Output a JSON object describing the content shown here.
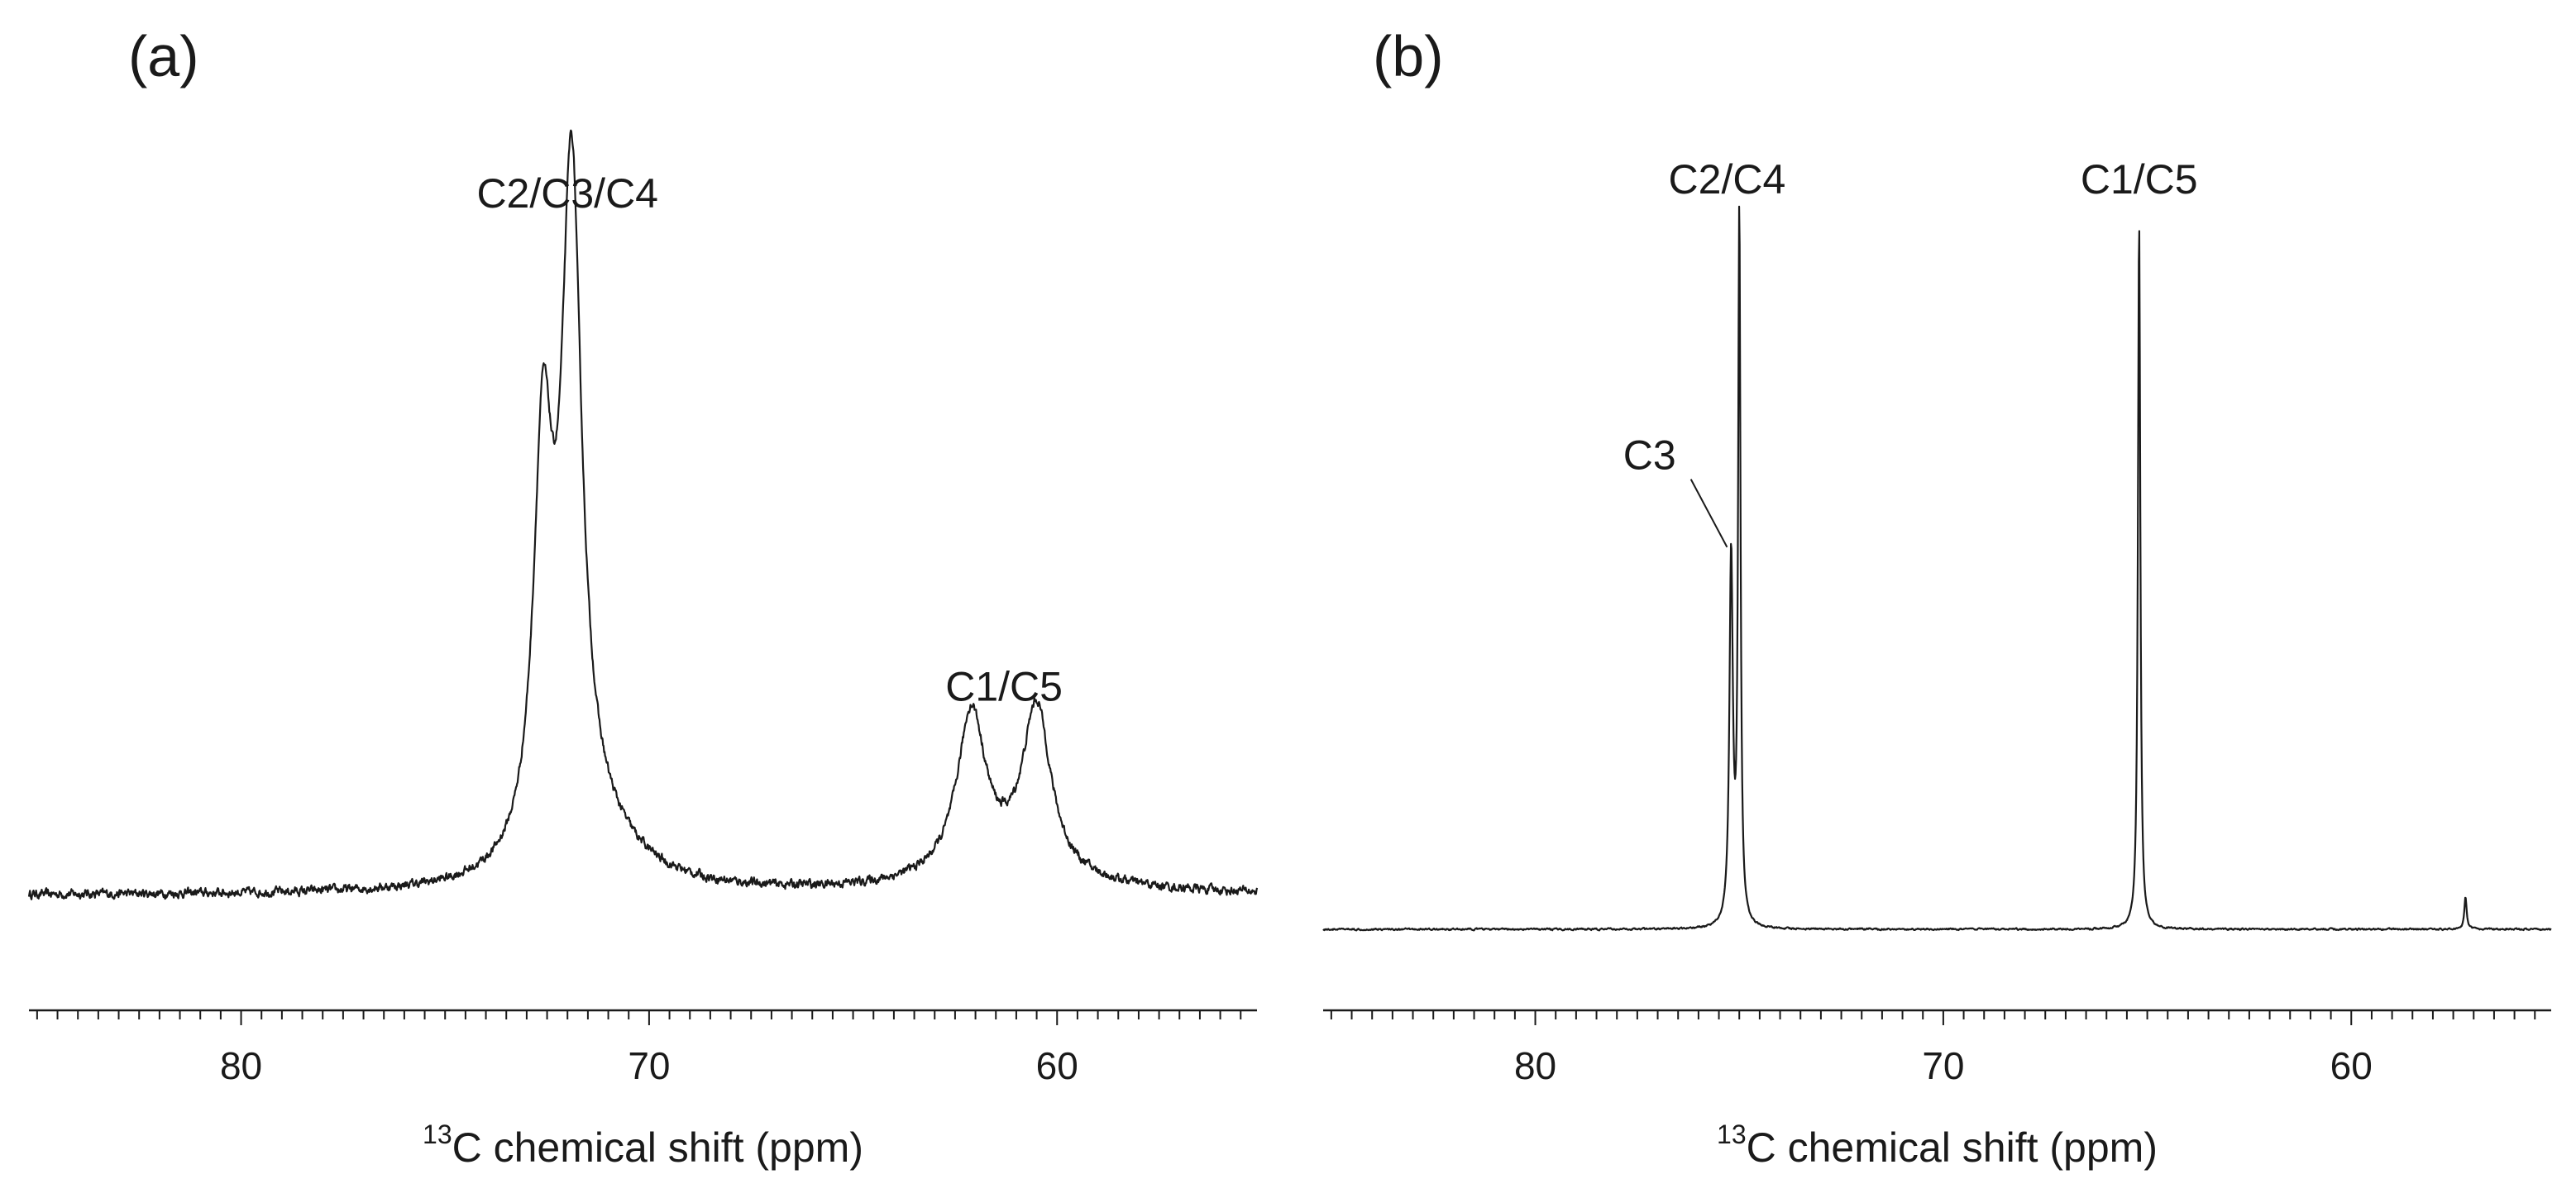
{
  "chart_data": [
    {
      "panel": "(a)",
      "type": "line",
      "xlabel": "chemical shift (ppm)",
      "xlabel_superscript": "13",
      "xlabel_nucleus": "C",
      "xlim": [
        85.2,
        55.1
      ],
      "x_reversed": true,
      "ylim": [
        0,
        1.0
      ],
      "y_axis_visible": false,
      "grid": false,
      "xticks": [
        80,
        70,
        60
      ],
      "xtick_labels": [
        "80",
        "70",
        "60"
      ],
      "minor_tick_step_ppm": 0.5,
      "baseline": 0.03,
      "noise_amplitude": 0.008,
      "peaks": [
        {
          "ppm": 72.6,
          "height": 0.57,
          "hwhm": 0.28
        },
        {
          "ppm": 71.9,
          "height": 0.96,
          "hwhm": 0.3
        },
        {
          "ppm": 71.3,
          "height": 0.07,
          "hwhm": 1.3
        },
        {
          "ppm": 62.1,
          "height": 0.23,
          "hwhm": 0.42
        },
        {
          "ppm": 60.5,
          "height": 0.24,
          "hwhm": 0.42
        },
        {
          "ppm": 61.4,
          "height": 0.03,
          "hwhm": 2.0
        }
      ],
      "annotations": [
        {
          "text": "C2/C3/C4",
          "ppm": 72.0,
          "y": 1.02
        },
        {
          "text": "C1/C5",
          "ppm": 61.3,
          "y": 0.31
        }
      ]
    },
    {
      "panel": "(b)",
      "type": "line",
      "xlabel": "chemical shift (ppm)",
      "xlabel_superscript": "13",
      "xlabel_nucleus": "C",
      "xlim": [
        85.2,
        55.1
      ],
      "x_reversed": true,
      "ylim": [
        0,
        1.0
      ],
      "y_axis_visible": false,
      "grid": false,
      "xticks": [
        80,
        70,
        60
      ],
      "xtick_labels": [
        "80",
        "70",
        "60"
      ],
      "minor_tick_step_ppm": 0.5,
      "baseline": 0.0,
      "noise_amplitude": 0.0015,
      "peaks": [
        {
          "ppm": 75.2,
          "height": 0.52,
          "hwhm": 0.05
        },
        {
          "ppm": 75.0,
          "height": 1.0,
          "hwhm": 0.035
        },
        {
          "ppm": 65.2,
          "height": 1.0,
          "hwhm": 0.035
        },
        {
          "ppm": 57.2,
          "height": 0.045,
          "hwhm": 0.035
        }
      ],
      "annotations": [
        {
          "text": "C2/C4",
          "ppm": 75.3,
          "y": 1.04
        },
        {
          "text": "C1/C5",
          "ppm": 65.2,
          "y": 1.04
        },
        {
          "text": "C3",
          "ppm": 77.2,
          "y": 0.65,
          "leader_to_ppm": 75.3,
          "leader_to_y": 0.54
        }
      ]
    }
  ]
}
